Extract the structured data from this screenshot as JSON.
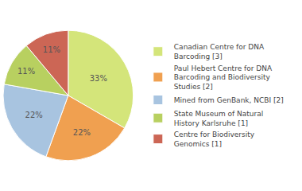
{
  "chart_data": {
    "type": "pie",
    "categories": [
      "Canadian Centre for DNA\nBarcoding [3]",
      "Paul Hebert Centre for DNA\nBarcoding and Biodiversity\nStudies [2]",
      "Mined from GenBank, NCBI [2]",
      "State Museum of Natural\nHistory Karlsruhe [1]",
      "Centre for Biodiversity\nGenomics [1]"
    ],
    "values": [
      33,
      22,
      22,
      11,
      11
    ],
    "value_labels": [
      "33%",
      "22%",
      "22%",
      "11%",
      "11%"
    ],
    "colors": [
      "#d4e57a",
      "#f0a050",
      "#a8c4e0",
      "#b8d060",
      "#cc6655"
    ],
    "data_labels": true,
    "legend": "right"
  }
}
